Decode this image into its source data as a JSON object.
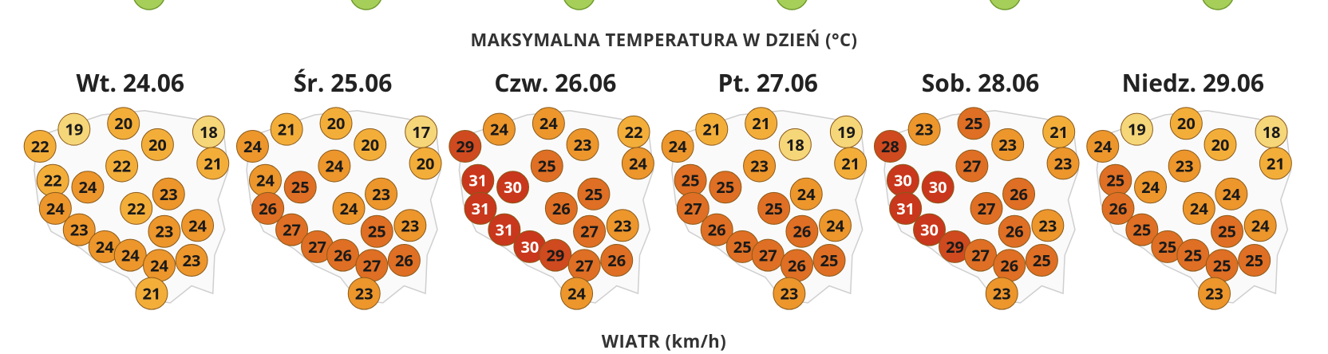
{
  "section_title": "MAKSYMALNA TEMPERATURA W DZIEŃ (°C)",
  "days": [
    {
      "label": "Wt. 24.06",
      "values": [
        19,
        20,
        18,
        22,
        20,
        21,
        22,
        22,
        24,
        23,
        22,
        24,
        24,
        23,
        23,
        24,
        24,
        24,
        23,
        21
      ]
    },
    {
      "label": "Śr. 25.06",
      "values": [
        21,
        20,
        17,
        24,
        20,
        20,
        24,
        24,
        25,
        23,
        24,
        26,
        23,
        27,
        25,
        27,
        26,
        27,
        26,
        23
      ]
    },
    {
      "label": "Czw. 26.06",
      "values": [
        24,
        24,
        22,
        29,
        23,
        24,
        25,
        31,
        30,
        25,
        26,
        31,
        23,
        31,
        27,
        30,
        29,
        27,
        26,
        24
      ]
    },
    {
      "label": "Pt. 27.06",
      "values": [
        21,
        21,
        19,
        24,
        18,
        21,
        23,
        25,
        25,
        24,
        25,
        27,
        24,
        26,
        26,
        25,
        27,
        26,
        25,
        23
      ]
    },
    {
      "label": "Sob. 28.06",
      "values": [
        23,
        25,
        21,
        28,
        23,
        23,
        27,
        30,
        30,
        26,
        27,
        31,
        23,
        30,
        26,
        29,
        27,
        26,
        25,
        23
      ]
    },
    {
      "label": "Niedz. 29.06",
      "values": [
        19,
        20,
        18,
        24,
        20,
        21,
        23,
        25,
        24,
        24,
        24,
        26,
        24,
        25,
        25,
        25,
        25,
        25,
        25,
        23
      ]
    }
  ],
  "next_section_title": "WIATR (km/h)"
}
